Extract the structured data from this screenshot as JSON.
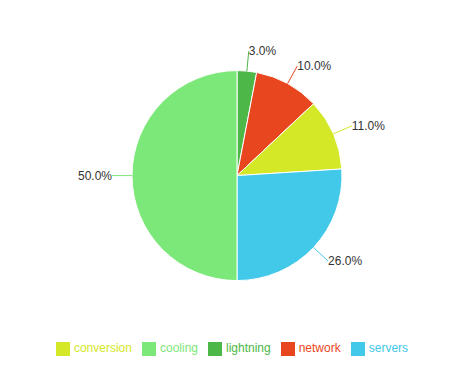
{
  "chart_data": {
    "type": "pie",
    "categories": [
      "lightning",
      "network",
      "conversion",
      "servers",
      "cooling"
    ],
    "values": [
      3.0,
      10.0,
      11.0,
      26.0,
      50.0
    ],
    "value_labels": [
      "3.0%",
      "10.0%",
      "11.0%",
      "26.0%",
      "50.0%"
    ],
    "colors": [
      "#4db848",
      "#e8461e",
      "#d4e827",
      "#42c8e8",
      "#7de87a"
    ],
    "data_labels": true,
    "legend": "bottom"
  }
}
